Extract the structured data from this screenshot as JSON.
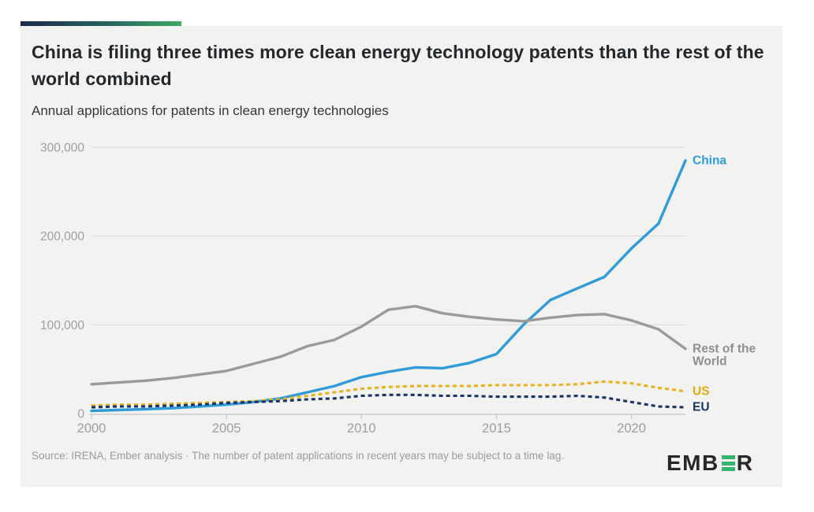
{
  "page": {
    "card_bg": "#f2f2f0",
    "accent_colors": [
      "#19294b",
      "#3cab63"
    ]
  },
  "header": {
    "title": "China is filing three times more clean energy technology patents than the rest of the world combined",
    "subtitle": "Annual applications for patents in clean energy technologies"
  },
  "footer": {
    "source_note": "Source: IRENA, Ember analysis · The number of patent applications in recent years may be subject to a time lag.",
    "logo_prefix": "EMB",
    "logo_suffix": "R"
  },
  "chart_data": {
    "type": "line",
    "title": "Annual applications for patents in clean energy technologies",
    "xlabel": "",
    "ylabel": "",
    "ylim": [
      0,
      300000
    ],
    "grid": "horizontal",
    "legend_position": "right-of-line-ends",
    "x": [
      2000,
      2001,
      2002,
      2003,
      2004,
      2005,
      2006,
      2007,
      2008,
      2009,
      2010,
      2011,
      2012,
      2013,
      2014,
      2015,
      2016,
      2017,
      2018,
      2019,
      2020,
      2021,
      2022
    ],
    "x_ticks": [
      {
        "value": 2000,
        "label": "2000"
      },
      {
        "value": 2005,
        "label": "2005"
      },
      {
        "value": 2010,
        "label": "2010"
      },
      {
        "value": 2015,
        "label": "2015"
      },
      {
        "value": 2020,
        "label": "2020"
      }
    ],
    "y_ticks": [
      {
        "value": 0,
        "label": "0"
      },
      {
        "value": 100000,
        "label": "100,000"
      },
      {
        "value": 200000,
        "label": "200,000"
      },
      {
        "value": 300000,
        "label": "300,000"
      }
    ],
    "series": [
      {
        "name": "China",
        "label_lines": [
          "China"
        ],
        "color": "#2f9bd8",
        "label_color": "#2f9bd8",
        "style": "solid",
        "values": [
          3000,
          4000,
          5000,
          6000,
          8000,
          10000,
          13000,
          17000,
          24000,
          31000,
          41000,
          47000,
          52000,
          51000,
          57000,
          67000,
          100000,
          128000,
          141000,
          154000,
          186000,
          214000,
          285000
        ]
      },
      {
        "name": "Rest of the World",
        "label_lines": [
          "Rest of the",
          "World"
        ],
        "color": "#9a9a9a",
        "label_color": "#8f8f8f",
        "style": "solid",
        "values": [
          33000,
          35000,
          37000,
          40000,
          44000,
          48000,
          56000,
          64000,
          76000,
          83000,
          98000,
          117000,
          121000,
          113000,
          109000,
          106000,
          104000,
          108000,
          111000,
          112000,
          105000,
          95000,
          73000
        ]
      },
      {
        "name": "US",
        "label_lines": [
          "US"
        ],
        "color": "#e8b21e",
        "label_color": "#dfa913",
        "style": "dashed",
        "values": [
          9000,
          10000,
          10000,
          11000,
          12000,
          13000,
          14000,
          16000,
          20000,
          24000,
          28000,
          30000,
          31000,
          31000,
          31000,
          32000,
          32000,
          32000,
          33000,
          36000,
          34000,
          29000,
          25000
        ]
      },
      {
        "name": "EU",
        "label_lines": [
          "EU"
        ],
        "color": "#1b3468",
        "label_color": "#1b3468",
        "style": "dashed",
        "values": [
          7000,
          8000,
          8000,
          9000,
          10000,
          12000,
          13000,
          14000,
          16000,
          17000,
          20000,
          21000,
          21000,
          20000,
          20000,
          19000,
          19000,
          19000,
          20000,
          18000,
          13000,
          8000,
          7000
        ]
      }
    ]
  }
}
